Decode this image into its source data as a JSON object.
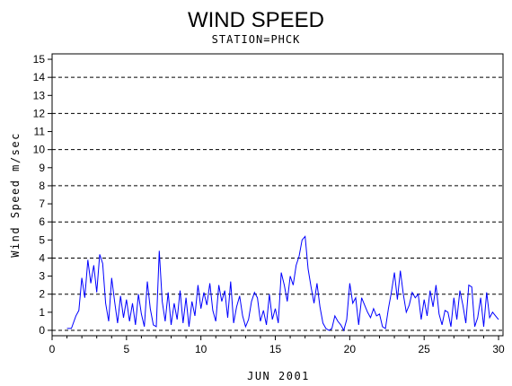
{
  "chart_data": {
    "type": "line",
    "title": "WIND SPEED",
    "subtitle": "STATION=PHCK",
    "xlabel": "JUN 2001",
    "ylabel": "Wind Speed m/sec",
    "xlim": [
      0,
      30.3
    ],
    "ylim": [
      -0.3,
      15.3
    ],
    "x_ticks": [
      0,
      5,
      10,
      15,
      20,
      25,
      30
    ],
    "y_ticks": [
      0,
      1,
      2,
      3,
      4,
      5,
      6,
      7,
      8,
      9,
      10,
      11,
      12,
      13,
      14,
      15
    ],
    "reference_lines": [
      0,
      2,
      4,
      6,
      8,
      10,
      12,
      14
    ],
    "grid": "dashed horizontal reference lines",
    "line_color": "#0000ff",
    "series": [
      {
        "x": [
          1.0,
          1.3,
          1.6,
          1.8,
          2.0,
          2.2,
          2.4,
          2.6,
          2.8,
          3.0,
          3.2,
          3.4,
          3.6,
          3.8,
          4.0,
          4.2,
          4.4,
          4.6,
          4.8,
          5.0,
          5.2,
          5.4,
          5.6,
          5.8,
          6.0,
          6.2,
          6.4,
          6.6,
          6.8,
          7.0,
          7.2,
          7.4,
          7.6,
          7.8,
          8.0,
          8.2,
          8.4,
          8.6,
          8.8,
          9.0,
          9.2,
          9.4,
          9.6,
          9.8,
          10.0,
          10.2,
          10.4,
          10.6,
          10.8,
          11.0,
          11.2,
          11.4,
          11.6,
          11.8,
          12.0,
          12.2,
          12.4,
          12.6,
          12.8,
          13.0,
          13.2,
          13.4,
          13.6,
          13.8,
          14.0,
          14.2,
          14.4,
          14.6,
          14.8,
          15.0,
          15.2,
          15.4,
          15.6,
          15.8,
          16.0,
          16.2,
          16.4,
          16.6,
          16.8,
          17.0,
          17.2,
          17.4,
          17.6,
          17.8,
          18.0,
          18.2,
          18.4,
          18.6,
          18.8,
          19.0,
          19.2,
          19.4,
          19.6,
          19.8,
          20.0,
          20.2,
          20.4,
          20.6,
          20.8,
          21.0,
          21.2,
          21.4,
          21.6,
          21.8,
          22.0,
          22.2,
          22.4,
          22.6,
          22.8,
          23.0,
          23.2,
          23.4,
          23.6,
          23.8,
          24.0,
          24.2,
          24.4,
          24.6,
          24.8,
          25.0,
          25.2,
          25.4,
          25.6,
          25.8,
          26.0,
          26.2,
          26.4,
          26.6,
          26.8,
          27.0,
          27.2,
          27.4,
          27.6,
          27.8,
          28.0,
          28.2,
          28.4,
          28.6,
          28.8,
          29.0,
          29.2,
          29.4,
          29.6,
          29.8,
          30.0
        ],
        "values": [
          0.1,
          0.1,
          0.8,
          1.1,
          2.9,
          1.8,
          3.9,
          2.6,
          3.6,
          2.1,
          4.2,
          3.7,
          1.5,
          0.5,
          2.9,
          1.6,
          0.4,
          1.9,
          0.7,
          1.7,
          0.5,
          1.5,
          0.3,
          2.0,
          0.9,
          0.2,
          2.7,
          1.2,
          0.3,
          0.2,
          4.4,
          1.6,
          0.5,
          2.1,
          0.3,
          1.5,
          0.6,
          2.2,
          0.4,
          1.8,
          0.2,
          1.6,
          0.8,
          2.5,
          1.2,
          2.1,
          1.4,
          2.6,
          1.1,
          0.5,
          2.5,
          1.6,
          2.2,
          0.7,
          2.7,
          0.4,
          1.3,
          1.9,
          0.8,
          0.2,
          0.6,
          1.6,
          2.1,
          1.8,
          0.5,
          1.1,
          0.3,
          2.0,
          0.6,
          1.2,
          0.4,
          3.2,
          2.5,
          1.6,
          3.0,
          2.5,
          3.6,
          4.1,
          5.0,
          5.2,
          3.4,
          2.4,
          1.5,
          2.6,
          1.3,
          0.4,
          0.1,
          0.0,
          0.1,
          0.8,
          0.5,
          0.3,
          0.0,
          0.6,
          2.6,
          1.5,
          1.8,
          0.3,
          1.8,
          1.4,
          1.0,
          0.7,
          1.2,
          0.8,
          0.9,
          0.2,
          0.1,
          1.2,
          2.1,
          3.2,
          1.7,
          3.3,
          2.0,
          1.0,
          1.4,
          2.1,
          1.8,
          2.0,
          0.6,
          1.7,
          0.8,
          2.2,
          1.3,
          2.5,
          0.9,
          0.3,
          1.1,
          1.0,
          0.2,
          1.8,
          0.6,
          2.2,
          1.4,
          0.4,
          2.5,
          2.4,
          0.2,
          0.7,
          1.8,
          0.2,
          2.1,
          0.7,
          1.0,
          0.8,
          0.6
        ]
      }
    ]
  }
}
